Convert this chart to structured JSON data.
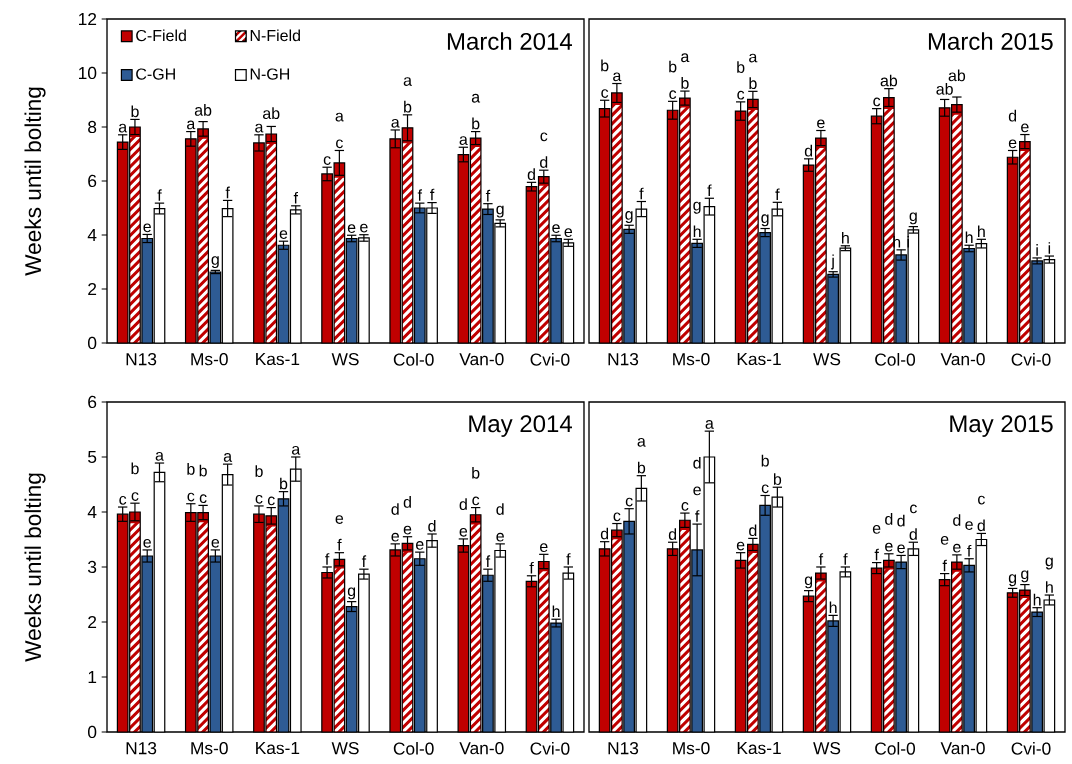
{
  "chart_data": [
    {
      "type": "bar",
      "title": "March 2014",
      "ylabel": "Weeks until bolting",
      "legend": "top left",
      "categories": [
        "N13",
        "Ms-0",
        "Kas-1",
        "WS",
        "Col-0",
        "Van-0",
        "Cvi-0"
      ],
      "ylim": [
        0,
        12
      ],
      "yticks": [
        0,
        2,
        4,
        6,
        8,
        10,
        12
      ],
      "series": [
        {
          "name": "C-Field",
          "color": "#c00000",
          "values": [
            7.44,
            7.56,
            7.41,
            6.26,
            7.56,
            6.98,
            5.79
          ],
          "errors": [
            0.27,
            0.27,
            0.3,
            0.25,
            0.33,
            0.27,
            0.16
          ],
          "value_labels": [
            "a",
            "a",
            "a",
            "c",
            "a",
            "a",
            "d"
          ]
        },
        {
          "name": "N-Field",
          "color": "#c00000",
          "values": [
            8.0,
            7.93,
            7.74,
            6.67,
            7.97,
            7.59,
            6.16
          ],
          "errors": [
            0.28,
            0.27,
            0.28,
            0.46,
            0.48,
            0.24,
            0.24
          ],
          "value_labels": [
            "b",
            "ab",
            "ab",
            "a c",
            "a b",
            "a b",
            "c d"
          ]
        },
        {
          "name": "C-GH",
          "color": "#2e5b94",
          "values": [
            3.87,
            2.63,
            3.62,
            3.87,
            5.0,
            4.96,
            3.87
          ],
          "errors": [
            0.15,
            0.06,
            0.15,
            0.12,
            0.18,
            0.2,
            0.12
          ],
          "value_labels": [
            "e",
            "g",
            "e",
            "e",
            "f",
            "f",
            "e"
          ]
        },
        {
          "name": "N-GH",
          "color": "#ffffff",
          "values": [
            4.98,
            4.98,
            4.93,
            3.89,
            5.0,
            4.43,
            3.71
          ],
          "errors": [
            0.2,
            0.3,
            0.15,
            0.12,
            0.2,
            0.13,
            0.13
          ],
          "value_labels": [
            "f",
            "f",
            "f",
            "e",
            "f",
            "g",
            "e"
          ]
        }
      ]
    },
    {
      "type": "bar",
      "title": "March 2015",
      "tick_labels": "x",
      "categories": [
        "N13",
        "Ms-0",
        "Kas-1",
        "WS",
        "Col-0",
        "Van-0",
        "Cvi-0"
      ],
      "ylim": [
        0,
        12
      ],
      "series": [
        {
          "color": "#c00000",
          "values": [
            8.68,
            8.62,
            8.59,
            6.59,
            8.4,
            8.71,
            6.88
          ],
          "errors": [
            0.31,
            0.33,
            0.34,
            0.23,
            0.28,
            0.31,
            0.25
          ],
          "value_labels": [
            "b c",
            "b c",
            "b c",
            "d",
            "c",
            "ab",
            "d e"
          ]
        },
        {
          "color": "#c00000",
          "values": [
            9.26,
            9.07,
            9.02,
            7.59,
            9.09,
            8.83,
            7.46
          ],
          "errors": [
            0.35,
            0.26,
            0.3,
            0.28,
            0.33,
            0.28,
            0.26
          ],
          "value_labels": [
            "a",
            "a b",
            "a b",
            "e",
            "ab",
            "ab",
            "e"
          ]
        },
        {
          "color": "#2e5b94",
          "values": [
            4.21,
            3.69,
            4.09,
            2.54,
            3.26,
            3.5,
            3.04
          ],
          "errors": [
            0.15,
            0.15,
            0.15,
            0.1,
            0.19,
            0.12,
            0.11
          ],
          "value_labels": [
            "g",
            "g h",
            "g",
            "j",
            "h i",
            "h",
            "i"
          ]
        },
        {
          "color": "#ffffff",
          "values": [
            4.96,
            5.05,
            4.96,
            3.51,
            4.19,
            3.68,
            3.09
          ],
          "errors": [
            0.28,
            0.31,
            0.25,
            0.09,
            0.12,
            0.16,
            0.13
          ],
          "value_labels": [
            "f",
            "f",
            "f",
            "h",
            "g",
            "h",
            "i"
          ]
        }
      ]
    },
    {
      "type": "bar",
      "title": "May 2014",
      "ylabel": "Weeks until bolting",
      "categories": [
        "N13",
        "Ms-0",
        "Kas-1",
        "WS",
        "Col-0",
        "Van-0",
        "Cvi-0"
      ],
      "ylim": [
        0,
        6
      ],
      "yticks": [
        0,
        1,
        2,
        3,
        4,
        5,
        6
      ],
      "series": [
        {
          "color": "#c00000",
          "values": [
            3.96,
            3.99,
            3.96,
            2.9,
            3.31,
            3.39,
            2.74
          ],
          "errors": [
            0.13,
            0.16,
            0.15,
            0.1,
            0.11,
            0.12,
            0.1
          ],
          "value_labels": [
            "c",
            "b c",
            "b c",
            "f",
            "d e",
            "d e",
            "f"
          ]
        },
        {
          "color": "#c00000",
          "values": [
            4.0,
            3.99,
            3.93,
            3.14,
            3.43,
            3.95,
            3.1
          ],
          "errors": [
            0.16,
            0.13,
            0.15,
            0.12,
            0.12,
            0.13,
            0.13
          ],
          "value_labels": [
            "b c",
            "b c",
            "c",
            "e f",
            "d e",
            "b c",
            "e"
          ]
        },
        {
          "color": "#2e5b94",
          "values": [
            3.2,
            3.2,
            4.24,
            2.28,
            3.15,
            2.85,
            1.98
          ],
          "errors": [
            0.11,
            0.11,
            0.13,
            0.09,
            0.12,
            0.11,
            0.07
          ],
          "value_labels": [
            "e",
            "e",
            "b",
            "g",
            "e",
            "f",
            "h"
          ]
        },
        {
          "color": "#ffffff",
          "values": [
            4.72,
            4.68,
            4.78,
            2.87,
            3.48,
            3.3,
            2.89
          ],
          "errors": [
            0.17,
            0.19,
            0.22,
            0.09,
            0.12,
            0.12,
            0.11
          ],
          "value_labels": [
            "a",
            "a",
            "a",
            "f",
            "d",
            "d e",
            "f"
          ]
        }
      ]
    },
    {
      "type": "bar",
      "title": "May 2015",
      "tick_labels": "x",
      "categories": [
        "N13",
        "Ms-0",
        "Kas-1",
        "WS",
        "Col-0",
        "Van-0",
        "Cvi-0"
      ],
      "ylim": [
        0,
        6
      ],
      "series": [
        {
          "color": "#c00000",
          "values": [
            3.33,
            3.33,
            3.12,
            2.47,
            2.98,
            2.77,
            2.53
          ],
          "errors": [
            0.13,
            0.12,
            0.14,
            0.1,
            0.1,
            0.11,
            0.08
          ],
          "value_labels": [
            "d",
            "d",
            "e",
            "g",
            "e f",
            "e f",
            "g"
          ]
        },
        {
          "color": "#c00000",
          "values": [
            3.67,
            3.85,
            3.41,
            2.89,
            3.12,
            3.09,
            2.58
          ],
          "errors": [
            0.12,
            0.13,
            0.11,
            0.11,
            0.12,
            0.13,
            0.1
          ],
          "value_labels": [
            "c",
            "c",
            "d",
            "f",
            "d e",
            "d e",
            "g"
          ]
        },
        {
          "color": "#2e5b94",
          "values": [
            3.83,
            3.31,
            4.12,
            2.02,
            3.09,
            3.03,
            2.18
          ],
          "errors": [
            0.23,
            0.47,
            0.18,
            0.1,
            0.12,
            0.12,
            0.08
          ],
          "value_labels": [
            "c",
            "d e f",
            "b c",
            "h",
            "d e",
            "e f",
            "h"
          ]
        },
        {
          "color": "#ffffff",
          "values": [
            4.43,
            5.0,
            4.27,
            2.91,
            3.33,
            3.5,
            2.4
          ],
          "errors": [
            0.23,
            0.47,
            0.18,
            0.09,
            0.12,
            0.11,
            0.09
          ],
          "value_labels": [
            "a b",
            "a",
            "b",
            "f",
            "c d",
            "c d",
            "g h"
          ]
        }
      ]
    }
  ]
}
